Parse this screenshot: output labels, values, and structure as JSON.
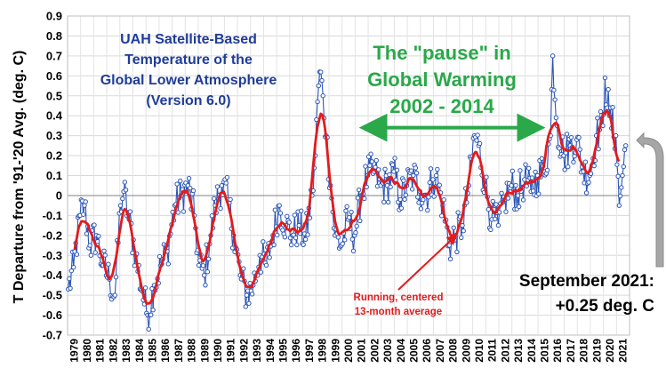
{
  "chart_data": {
    "type": "line",
    "title_lines": [
      "UAH Satellite-Based",
      "Temperature of the",
      "Global Lower Atmosphere",
      "(Version 6.0)"
    ],
    "ylabel": "T Departure from '91-'20 Avg. (deg. C)",
    "xlabel": "",
    "ylim": [
      -0.7,
      0.9
    ],
    "y_ticks": [
      "0.9",
      "0.8",
      "0.7",
      "0.6",
      "0.5",
      "0.4",
      "0.3",
      "0.2",
      "0.1",
      "0",
      "-0.1",
      "-0.2",
      "-0.3",
      "-0.4",
      "-0.5",
      "-0.6",
      "-0.7"
    ],
    "x_ticks": [
      "1979",
      "1980",
      "1981",
      "1982",
      "1983",
      "1984",
      "1985",
      "1986",
      "1987",
      "1988",
      "1989",
      "1990",
      "1991",
      "1992",
      "1993",
      "1994",
      "1995",
      "1996",
      "1997",
      "1998",
      "1999",
      "2000",
      "2001",
      "2002",
      "2003",
      "2004",
      "2005",
      "2006",
      "2007",
      "2008",
      "2009",
      "2010",
      "2011",
      "2012",
      "2013",
      "2014",
      "2015",
      "2016",
      "2017",
      "2018",
      "2019",
      "2020",
      "2021"
    ],
    "grid": true,
    "series": [
      {
        "kind": "monthly",
        "color": "#2a55b8",
        "anchors": [
          [
            "1979-01",
            -0.47
          ],
          [
            "1979-06",
            -0.36
          ],
          [
            "1979-12",
            -0.1
          ],
          [
            "1980-04",
            -0.05
          ],
          [
            "1980-09",
            -0.25
          ],
          [
            "1981-03",
            -0.2
          ],
          [
            "1981-09",
            -0.35
          ],
          [
            "1982-03",
            -0.42
          ],
          [
            "1982-08",
            -0.5
          ],
          [
            "1983-01",
            -0.05
          ],
          [
            "1983-04",
            0.02
          ],
          [
            "1983-09",
            -0.12
          ],
          [
            "1984-03",
            -0.3
          ],
          [
            "1984-09",
            -0.48
          ],
          [
            "1985-02",
            -0.6
          ],
          [
            "1985-08",
            -0.45
          ],
          [
            "1986-02",
            -0.35
          ],
          [
            "1986-08",
            -0.28
          ],
          [
            "1987-03",
            -0.05
          ],
          [
            "1987-09",
            0.0
          ],
          [
            "1988-03",
            0.05
          ],
          [
            "1988-09",
            -0.1
          ],
          [
            "1989-01",
            -0.35
          ],
          [
            "1989-06",
            -0.4
          ],
          [
            "1989-12",
            -0.2
          ],
          [
            "1990-04",
            -0.05
          ],
          [
            "1990-10",
            0.05
          ],
          [
            "1991-04",
            -0.02
          ],
          [
            "1991-09",
            -0.2
          ],
          [
            "1992-03",
            -0.4
          ],
          [
            "1992-09",
            -0.5
          ],
          [
            "1993-03",
            -0.45
          ],
          [
            "1993-09",
            -0.3
          ],
          [
            "1994-03",
            -0.35
          ],
          [
            "1994-09",
            -0.2
          ],
          [
            "1995-03",
            -0.05
          ],
          [
            "1995-09",
            -0.15
          ],
          [
            "1996-03",
            -0.2
          ],
          [
            "1996-09",
            -0.15
          ],
          [
            "1997-03",
            -0.22
          ],
          [
            "1997-09",
            0.0
          ],
          [
            "1997-12",
            0.2
          ],
          [
            "1998-02",
            0.47
          ],
          [
            "1998-04",
            0.62
          ],
          [
            "1998-07",
            0.5
          ],
          [
            "1998-10",
            0.3
          ],
          [
            "1999-02",
            0.05
          ],
          [
            "1999-06",
            -0.2
          ],
          [
            "1999-12",
            -0.25
          ],
          [
            "2000-06",
            -0.12
          ],
          [
            "2000-12",
            -0.2
          ],
          [
            "2001-06",
            0.0
          ],
          [
            "2001-12",
            0.1
          ],
          [
            "2002-06",
            0.12
          ],
          [
            "2002-12",
            0.05
          ],
          [
            "2003-06",
            0.05
          ],
          [
            "2003-12",
            0.12
          ],
          [
            "2004-06",
            -0.02
          ],
          [
            "2004-12",
            0.05
          ],
          [
            "2005-06",
            0.1
          ],
          [
            "2005-12",
            0.02
          ],
          [
            "2006-06",
            0.0
          ],
          [
            "2006-12",
            0.08
          ],
          [
            "2007-03",
            0.1
          ],
          [
            "2007-09",
            -0.05
          ],
          [
            "2008-03",
            -0.25
          ],
          [
            "2008-09",
            -0.2
          ],
          [
            "2009-03",
            -0.15
          ],
          [
            "2009-09",
            0.05
          ],
          [
            "2010-02",
            0.3
          ],
          [
            "2010-06",
            0.25
          ],
          [
            "2010-12",
            0.05
          ],
          [
            "2011-06",
            -0.12
          ],
          [
            "2011-12",
            -0.15
          ],
          [
            "2012-06",
            -0.02
          ],
          [
            "2012-12",
            0.05
          ],
          [
            "2013-06",
            0.0
          ],
          [
            "2013-12",
            0.08
          ],
          [
            "2014-06",
            0.02
          ],
          [
            "2014-12",
            0.1
          ],
          [
            "2015-06",
            0.12
          ],
          [
            "2015-12",
            0.3
          ],
          [
            "2016-02",
            0.7
          ],
          [
            "2016-06",
            0.35
          ],
          [
            "2016-12",
            0.2
          ],
          [
            "2017-06",
            0.25
          ],
          [
            "2017-12",
            0.28
          ],
          [
            "2018-06",
            0.12
          ],
          [
            "2018-12",
            0.1
          ],
          [
            "2019-06",
            0.3
          ],
          [
            "2019-12",
            0.35
          ],
          [
            "2020-02",
            0.59
          ],
          [
            "2020-06",
            0.4
          ],
          [
            "2020-12",
            0.3
          ],
          [
            "2021-03",
            -0.05
          ],
          [
            "2021-06",
            0.1
          ],
          [
            "2021-09",
            0.25
          ]
        ]
      },
      {
        "name": "Running, centered 13-month average",
        "kind": "running-13-month",
        "color": "#e41a1c"
      }
    ]
  },
  "annotations": {
    "pause_line1": "The \"pause\" in",
    "pause_line2": "Global Warming",
    "pause_line3": "2002 - 2014",
    "pause_range": [
      "2002-01",
      "2014-12"
    ],
    "pause_value": 0.3,
    "running_line1": "Running, centered",
    "running_line2": "13-month average",
    "september_line1": "September 2021:",
    "september_line2": "+0.25 deg. C",
    "september_value": 0.25,
    "colors": {
      "monthly": "#2a55b8",
      "running": "#e41a1c",
      "pause": "#2aa84a",
      "title": "#1f3c99",
      "arrow_gray": "#a6a6a6"
    }
  }
}
